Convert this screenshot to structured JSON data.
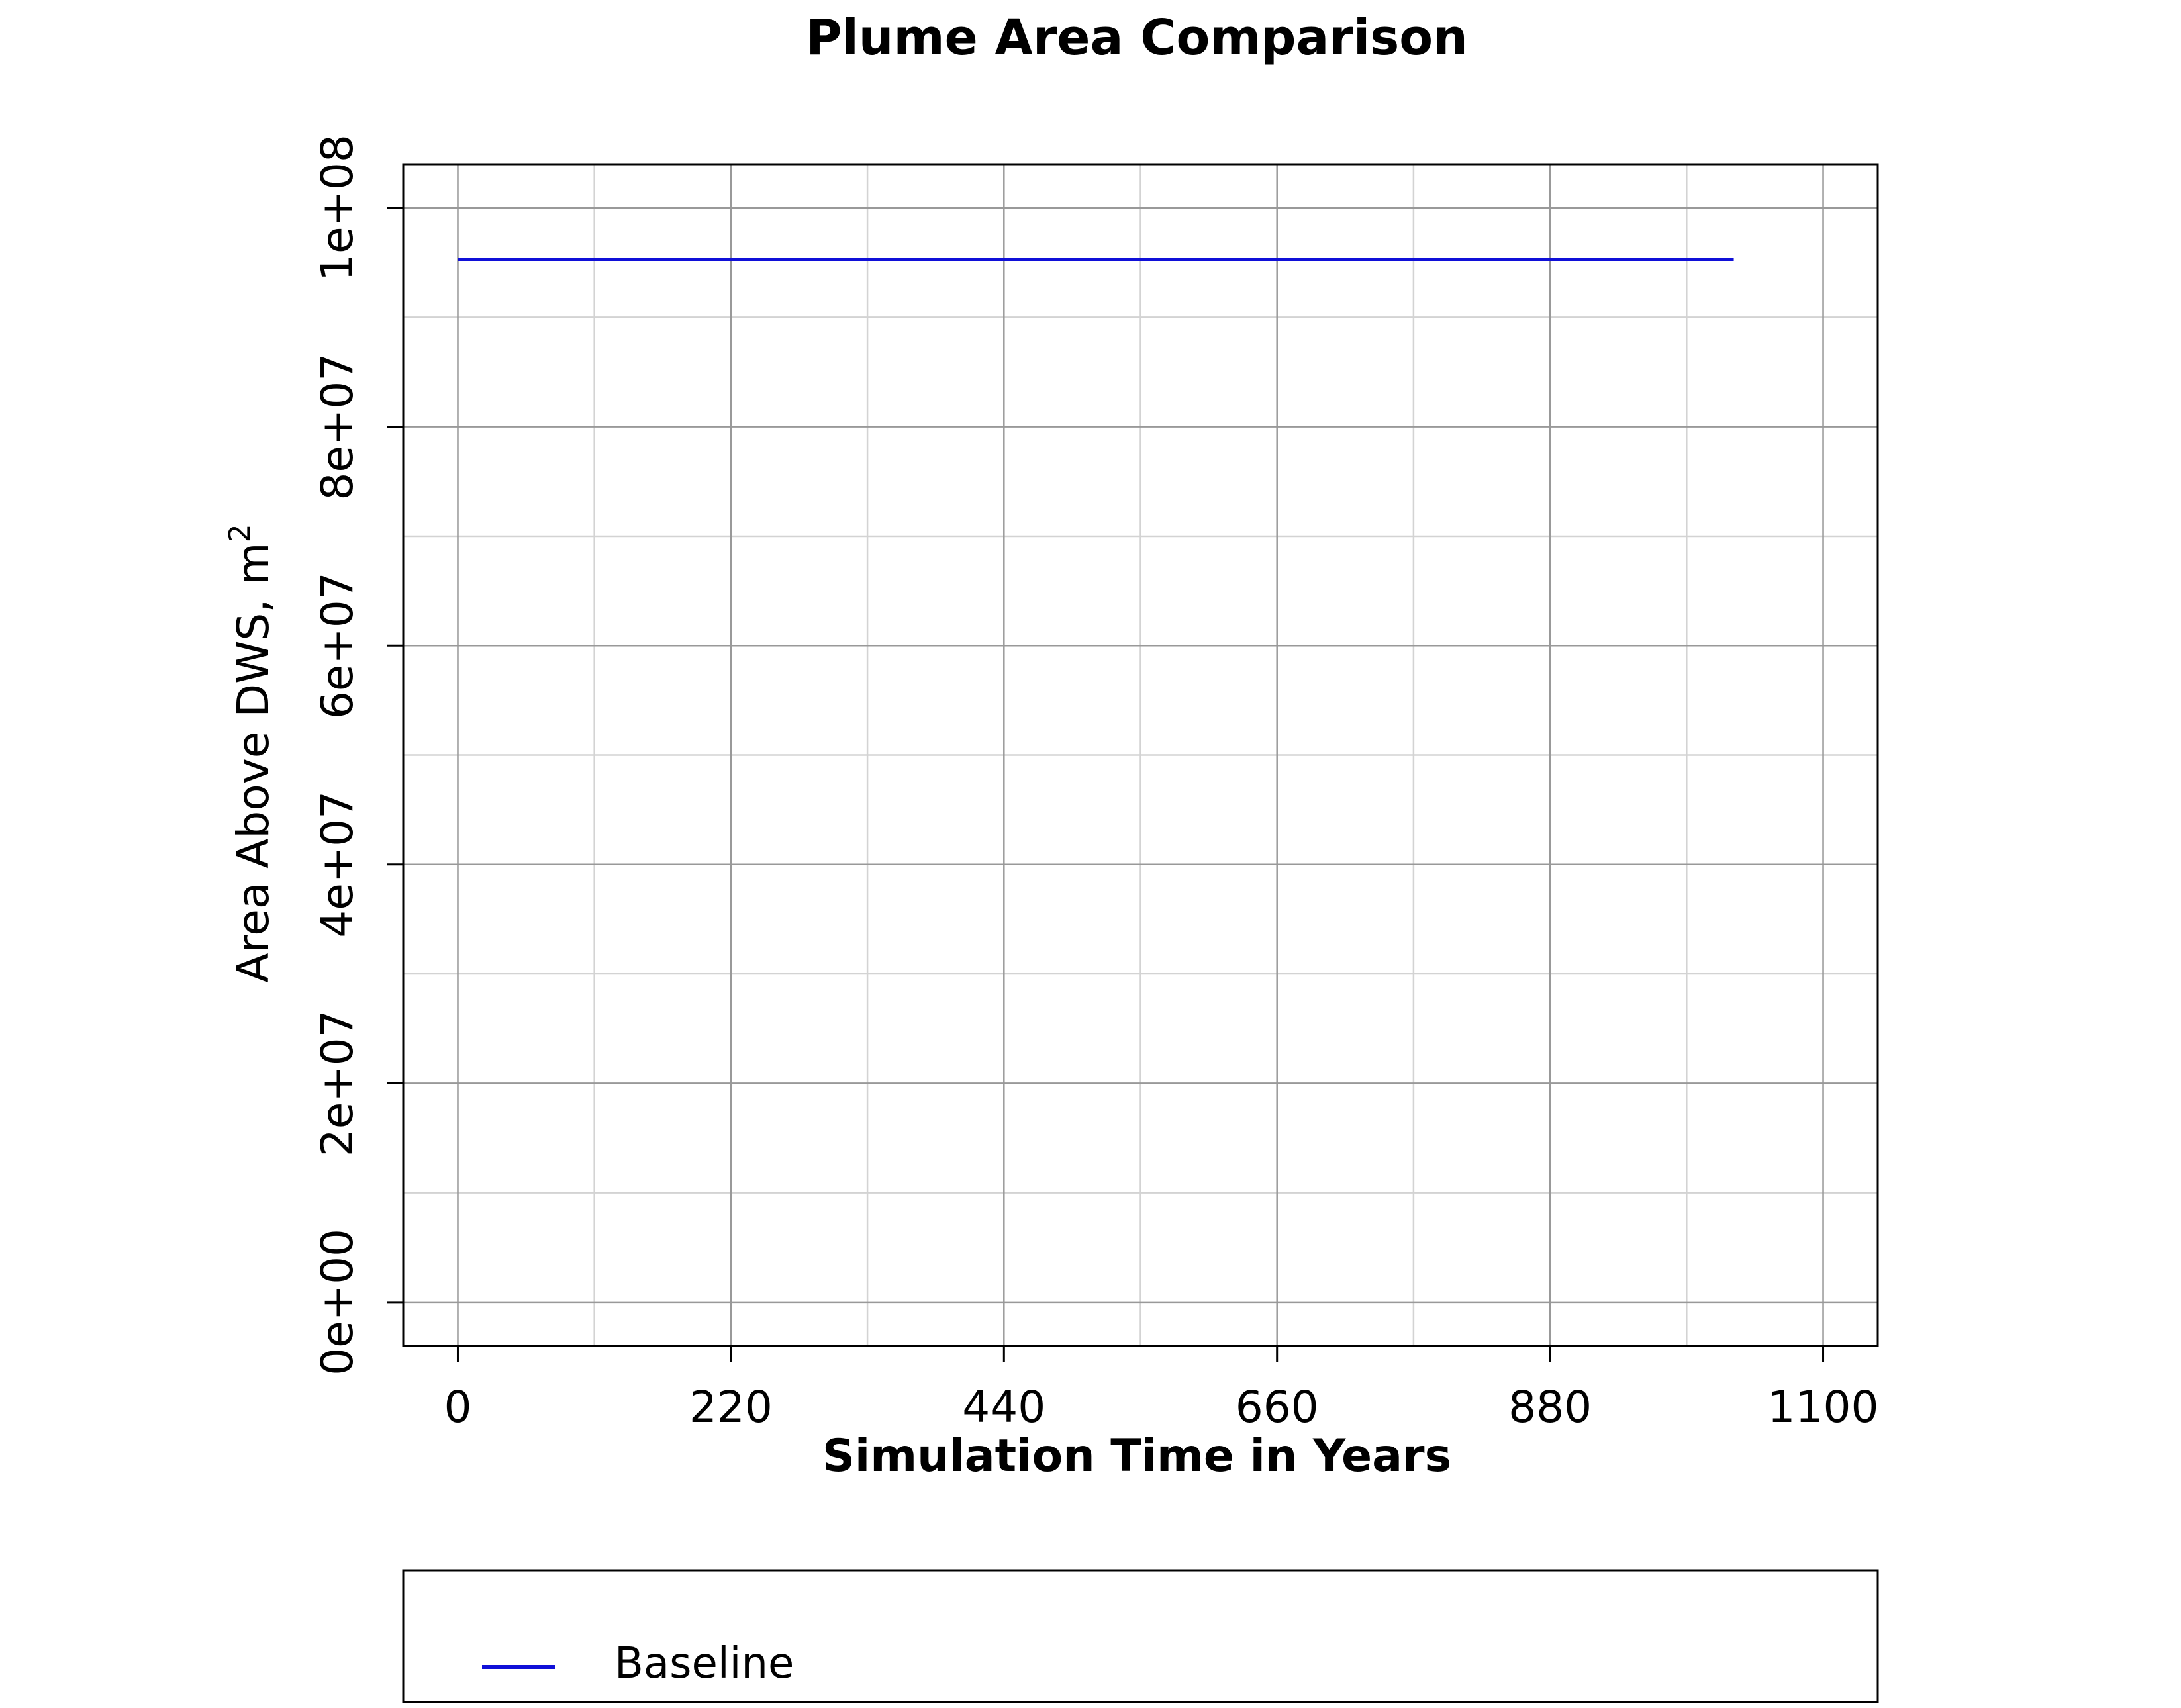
{
  "chart_data": {
    "type": "line",
    "title": "Plume Area Comparison",
    "xlabel": "Simulation Time in Years",
    "ylabel": "Area Above DWS, m",
    "ylabel_superscript": "2",
    "xlim": [
      -44,
      1144
    ],
    "ylim": [
      -4000000,
      104000000
    ],
    "x_ticks": [
      0,
      220,
      440,
      660,
      880,
      1100
    ],
    "x_tick_labels": [
      "0",
      "220",
      "440",
      "660",
      "880",
      "1100"
    ],
    "x_minor_grid": [
      110,
      330,
      550,
      770,
      990
    ],
    "y_ticks": [
      0,
      20000000,
      40000000,
      60000000,
      80000000,
      100000000
    ],
    "y_tick_labels": [
      "0e+00",
      "2e+07",
      "4e+07",
      "6e+07",
      "8e+07",
      "1e+08"
    ],
    "y_minor_grid": [
      10000000,
      30000000,
      50000000,
      70000000,
      90000000
    ],
    "grid": true,
    "legend_position": "bottom",
    "series": [
      {
        "name": "Baseline",
        "color": "#1010d8",
        "x": [
          0,
          1028
        ],
        "y": [
          95300000,
          95300000
        ]
      }
    ]
  }
}
